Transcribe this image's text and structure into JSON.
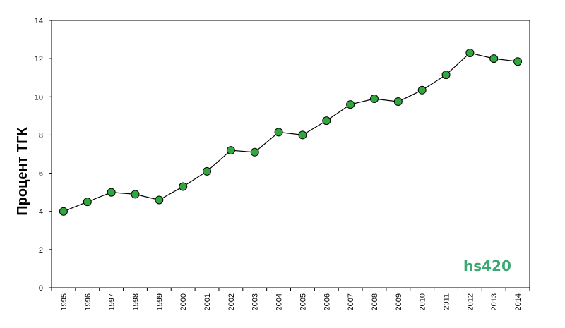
{
  "chart_data": {
    "type": "line",
    "title": "",
    "xlabel": "",
    "ylabel": "Процент ТГК",
    "categories": [
      "1995",
      "1996",
      "1997",
      "1998",
      "1999",
      "2000",
      "2001",
      "2002",
      "2003",
      "2004",
      "2005",
      "2006",
      "2007",
      "2008",
      "2009",
      "2010",
      "2011",
      "2012",
      "2013",
      "2014"
    ],
    "series": [
      {
        "values": [
          4.0,
          4.5,
          5.0,
          4.9,
          4.6,
          5.3,
          6.1,
          7.2,
          7.1,
          8.15,
          8.0,
          8.75,
          9.6,
          9.9,
          9.75,
          10.35,
          11.15,
          12.3,
          12.0,
          11.85
        ]
      }
    ],
    "ylim": [
      0,
      14
    ],
    "yticks": [
      "0",
      "2",
      "4",
      "6",
      "8",
      "10",
      "12",
      "14"
    ],
    "grid": false,
    "legend": "none",
    "colors": {
      "marker_fill": "#2eaa3c",
      "marker_stroke": "#000000",
      "line": "#000000"
    }
  },
  "watermark": {
    "text": "hs420",
    "color": "#3aa872"
  }
}
